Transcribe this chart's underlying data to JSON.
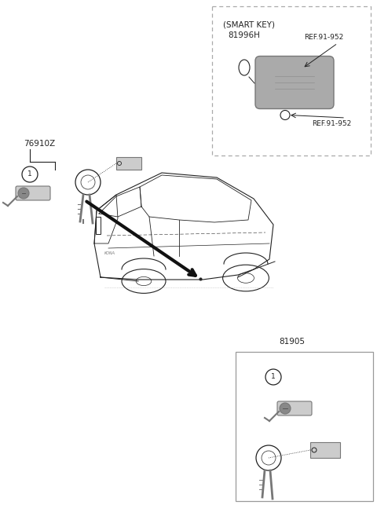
{
  "bg_color": "#ffffff",
  "line_color": "#222222",
  "gray_fill": "#999999",
  "light_gray": "#cccccc",
  "med_gray": "#777777",
  "smart_key_label": "(SMART KEY)",
  "smart_key_part": "81996H",
  "smart_key_ref1": "REF.91-952",
  "smart_key_ref2": "REF.91-952",
  "part_76910z": "76910Z",
  "part_81905": "81905",
  "fig_width": 4.8,
  "fig_height": 6.57,
  "dpi": 100
}
